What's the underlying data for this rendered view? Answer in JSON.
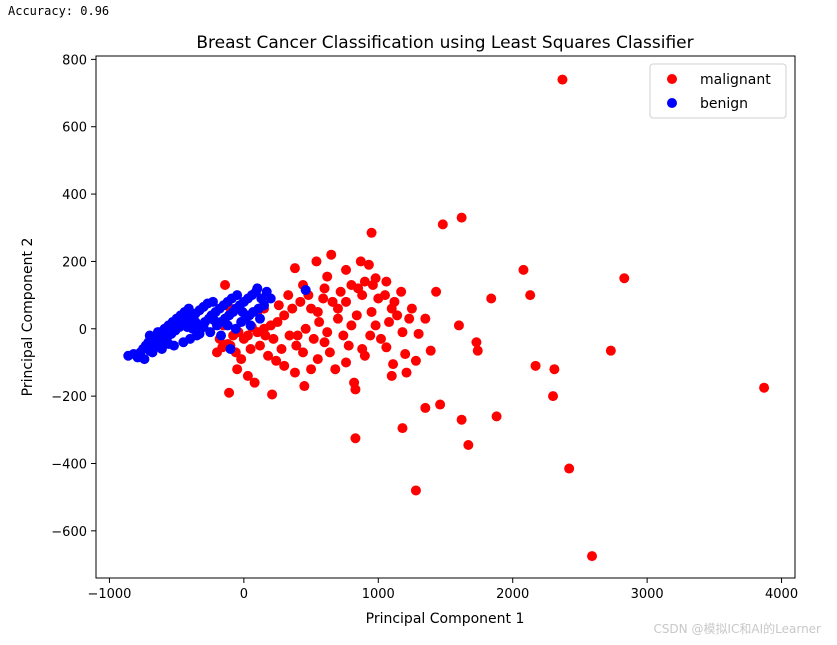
{
  "console_output": "Accuracy: 0.96",
  "watermark": "CSDN @模拟IC和AI的Learner",
  "colors": {
    "malignant": "#ff0000",
    "benign": "#0000ff"
  },
  "chart_data": {
    "type": "scatter",
    "title": "Breast Cancer Classification using Least Squares Classifier",
    "xlabel": "Principal Component 1",
    "ylabel": "Principal Component 2",
    "xlim": [
      -1100,
      4100
    ],
    "ylim": [
      -740,
      810
    ],
    "xticks": [
      -1000,
      0,
      1000,
      2000,
      3000,
      4000
    ],
    "xtick_labels": [
      "−1000",
      "0",
      "1000",
      "2000",
      "3000",
      "4000"
    ],
    "yticks": [
      -600,
      -400,
      -200,
      0,
      200,
      400,
      600,
      800
    ],
    "ytick_labels": [
      "−600",
      "−400",
      "−200",
      "0",
      "200",
      "400",
      "600",
      "800"
    ],
    "grid": false,
    "legend_position": "top-right",
    "series": [
      {
        "name": "malignant",
        "color": "#ff0000",
        "points": [
          [
            2370,
            740
          ],
          [
            1620,
            330
          ],
          [
            1480,
            310
          ],
          [
            950,
            285
          ],
          [
            2830,
            150
          ],
          [
            2080,
            175
          ],
          [
            3870,
            -175
          ],
          [
            2730,
            -65
          ],
          [
            2130,
            100
          ],
          [
            1840,
            90
          ],
          [
            2170,
            -110
          ],
          [
            2310,
            -120
          ],
          [
            2300,
            -200
          ],
          [
            2420,
            -415
          ],
          [
            2590,
            -675
          ],
          [
            1280,
            -480
          ],
          [
            1670,
            -345
          ],
          [
            1880,
            -260
          ],
          [
            1620,
            -270
          ],
          [
            1460,
            -225
          ],
          [
            1350,
            -235
          ],
          [
            1180,
            -295
          ],
          [
            830,
            -325
          ],
          [
            1730,
            -40
          ],
          [
            1740,
            -65
          ],
          [
            1600,
            10
          ],
          [
            1430,
            110
          ],
          [
            1350,
            30
          ],
          [
            1300,
            -15
          ],
          [
            1390,
            -65
          ],
          [
            1200,
            -75
          ],
          [
            1280,
            -95
          ],
          [
            1210,
            -130
          ],
          [
            1100,
            -140
          ],
          [
            1110,
            -105
          ],
          [
            1060,
            -55
          ],
          [
            870,
            200
          ],
          [
            650,
            220
          ],
          [
            540,
            200
          ],
          [
            380,
            180
          ],
          [
            760,
            175
          ],
          [
            620,
            155
          ],
          [
            980,
            150
          ],
          [
            960,
            130
          ],
          [
            930,
            190
          ],
          [
            880,
            100
          ],
          [
            1000,
            90
          ],
          [
            1050,
            100
          ],
          [
            1120,
            80
          ],
          [
            1170,
            110
          ],
          [
            720,
            110
          ],
          [
            660,
            80
          ],
          [
            590,
            90
          ],
          [
            480,
            100
          ],
          [
            420,
            80
          ],
          [
            360,
            60
          ],
          [
            300,
            40
          ],
          [
            250,
            20
          ],
          [
            200,
            10
          ],
          [
            150,
            0
          ],
          [
            100,
            -10
          ],
          [
            60,
            5
          ],
          [
            30,
            -20
          ],
          [
            0,
            -30
          ],
          [
            -40,
            -10
          ],
          [
            -80,
            -20
          ],
          [
            -120,
            -45
          ],
          [
            -160,
            -55
          ],
          [
            -200,
            -70
          ],
          [
            -60,
            -70
          ],
          [
            -20,
            -90
          ],
          [
            50,
            -60
          ],
          [
            120,
            -50
          ],
          [
            180,
            -80
          ],
          [
            240,
            -95
          ],
          [
            300,
            -110
          ],
          [
            380,
            -130
          ],
          [
            450,
            -170
          ],
          [
            -110,
            -190
          ],
          [
            210,
            -195
          ],
          [
            -50,
            -120
          ],
          [
            30,
            -140
          ],
          [
            80,
            -160
          ],
          [
            400,
            -20
          ],
          [
            460,
            0
          ],
          [
            520,
            -30
          ],
          [
            560,
            20
          ],
          [
            620,
            -10
          ],
          [
            700,
            30
          ],
          [
            740,
            -20
          ],
          [
            800,
            10
          ],
          [
            840,
            40
          ],
          [
            880,
            -60
          ],
          [
            820,
            -160
          ],
          [
            830,
            -180
          ],
          [
            760,
            -100
          ],
          [
            680,
            -120
          ],
          [
            640,
            -70
          ],
          [
            600,
            -40
          ],
          [
            550,
            -90
          ],
          [
            500,
            -120
          ],
          [
            440,
            -70
          ],
          [
            390,
            -50
          ],
          [
            340,
            -20
          ],
          [
            280,
            -60
          ],
          [
            220,
            -30
          ],
          [
            160,
            -20
          ],
          [
            900,
            -80
          ],
          [
            940,
            -20
          ],
          [
            980,
            10
          ],
          [
            1020,
            -30
          ],
          [
            1080,
            20
          ],
          [
            1140,
            40
          ],
          [
            1230,
            30
          ],
          [
            1180,
            -10
          ],
          [
            500,
            60
          ],
          [
            550,
            50
          ],
          [
            700,
            60
          ],
          [
            760,
            80
          ],
          [
            800,
            130
          ],
          [
            850,
            120
          ],
          [
            900,
            140
          ],
          [
            1060,
            140
          ],
          [
            1100,
            60
          ],
          [
            1250,
            60
          ],
          [
            -140,
            130
          ],
          [
            -100,
            60
          ],
          [
            -150,
            10
          ],
          [
            -180,
            -30
          ],
          [
            -100,
            -50
          ],
          [
            40,
            40
          ],
          [
            100,
            50
          ],
          [
            150,
            60
          ],
          [
            260,
            70
          ],
          [
            330,
            100
          ],
          [
            440,
            130
          ],
          [
            600,
            120
          ],
          [
            780,
            -50
          ],
          [
            950,
            50
          ]
        ]
      },
      {
        "name": "benign",
        "color": "#0000ff",
        "points": [
          [
            -860,
            -80
          ],
          [
            -820,
            -75
          ],
          [
            -790,
            -85
          ],
          [
            -770,
            -70
          ],
          [
            -750,
            -60
          ],
          [
            -730,
            -50
          ],
          [
            -710,
            -40
          ],
          [
            -700,
            -65
          ],
          [
            -680,
            -30
          ],
          [
            -660,
            -55
          ],
          [
            -650,
            -20
          ],
          [
            -630,
            -45
          ],
          [
            -620,
            -10
          ],
          [
            -600,
            -35
          ],
          [
            -590,
            0
          ],
          [
            -570,
            -25
          ],
          [
            -560,
            10
          ],
          [
            -540,
            -15
          ],
          [
            -530,
            20
          ],
          [
            -510,
            -5
          ],
          [
            -500,
            30
          ],
          [
            -480,
            5
          ],
          [
            -470,
            40
          ],
          [
            -450,
            15
          ],
          [
            -440,
            50
          ],
          [
            -420,
            25
          ],
          [
            -410,
            60
          ],
          [
            -390,
            35
          ],
          [
            -380,
            0
          ],
          [
            -360,
            45
          ],
          [
            -350,
            -20
          ],
          [
            -330,
            55
          ],
          [
            -320,
            10
          ],
          [
            -300,
            65
          ],
          [
            -290,
            20
          ],
          [
            -270,
            75
          ],
          [
            -260,
            30
          ],
          [
            -240,
            40
          ],
          [
            -230,
            80
          ],
          [
            -210,
            50
          ],
          [
            -200,
            10
          ],
          [
            -180,
            60
          ],
          [
            -170,
            20
          ],
          [
            -150,
            70
          ],
          [
            -140,
            30
          ],
          [
            -120,
            80
          ],
          [
            -110,
            40
          ],
          [
            -90,
            90
          ],
          [
            -80,
            50
          ],
          [
            -60,
            60
          ],
          [
            -50,
            100
          ],
          [
            -30,
            70
          ],
          [
            -20,
            20
          ],
          [
            0,
            80
          ],
          [
            10,
            30
          ],
          [
            30,
            90
          ],
          [
            40,
            40
          ],
          [
            60,
            100
          ],
          [
            70,
            50
          ],
          [
            90,
            110
          ],
          [
            110,
            60
          ],
          [
            130,
            90
          ],
          [
            150,
            70
          ],
          [
            170,
            110
          ],
          [
            200,
            90
          ],
          [
            100,
            120
          ],
          [
            460,
            115
          ],
          [
            -100,
            -60
          ],
          [
            -250,
            -10
          ],
          [
            -450,
            -40
          ],
          [
            -520,
            -50
          ],
          [
            -610,
            -60
          ],
          [
            -680,
            -70
          ],
          [
            -740,
            -90
          ],
          [
            -560,
            -45
          ],
          [
            -400,
            -30
          ],
          [
            -330,
            -15
          ],
          [
            -170,
            -20
          ],
          [
            -60,
            0
          ],
          [
            -420,
            5
          ],
          [
            -300,
            5
          ],
          [
            -700,
            -20
          ],
          [
            -640,
            -10
          ],
          [
            -480,
            25
          ],
          [
            -360,
            20
          ],
          [
            -220,
            25
          ],
          [
            -120,
            10
          ],
          [
            -10,
            50
          ],
          [
            50,
            10
          ],
          [
            120,
            30
          ]
        ]
      }
    ]
  }
}
